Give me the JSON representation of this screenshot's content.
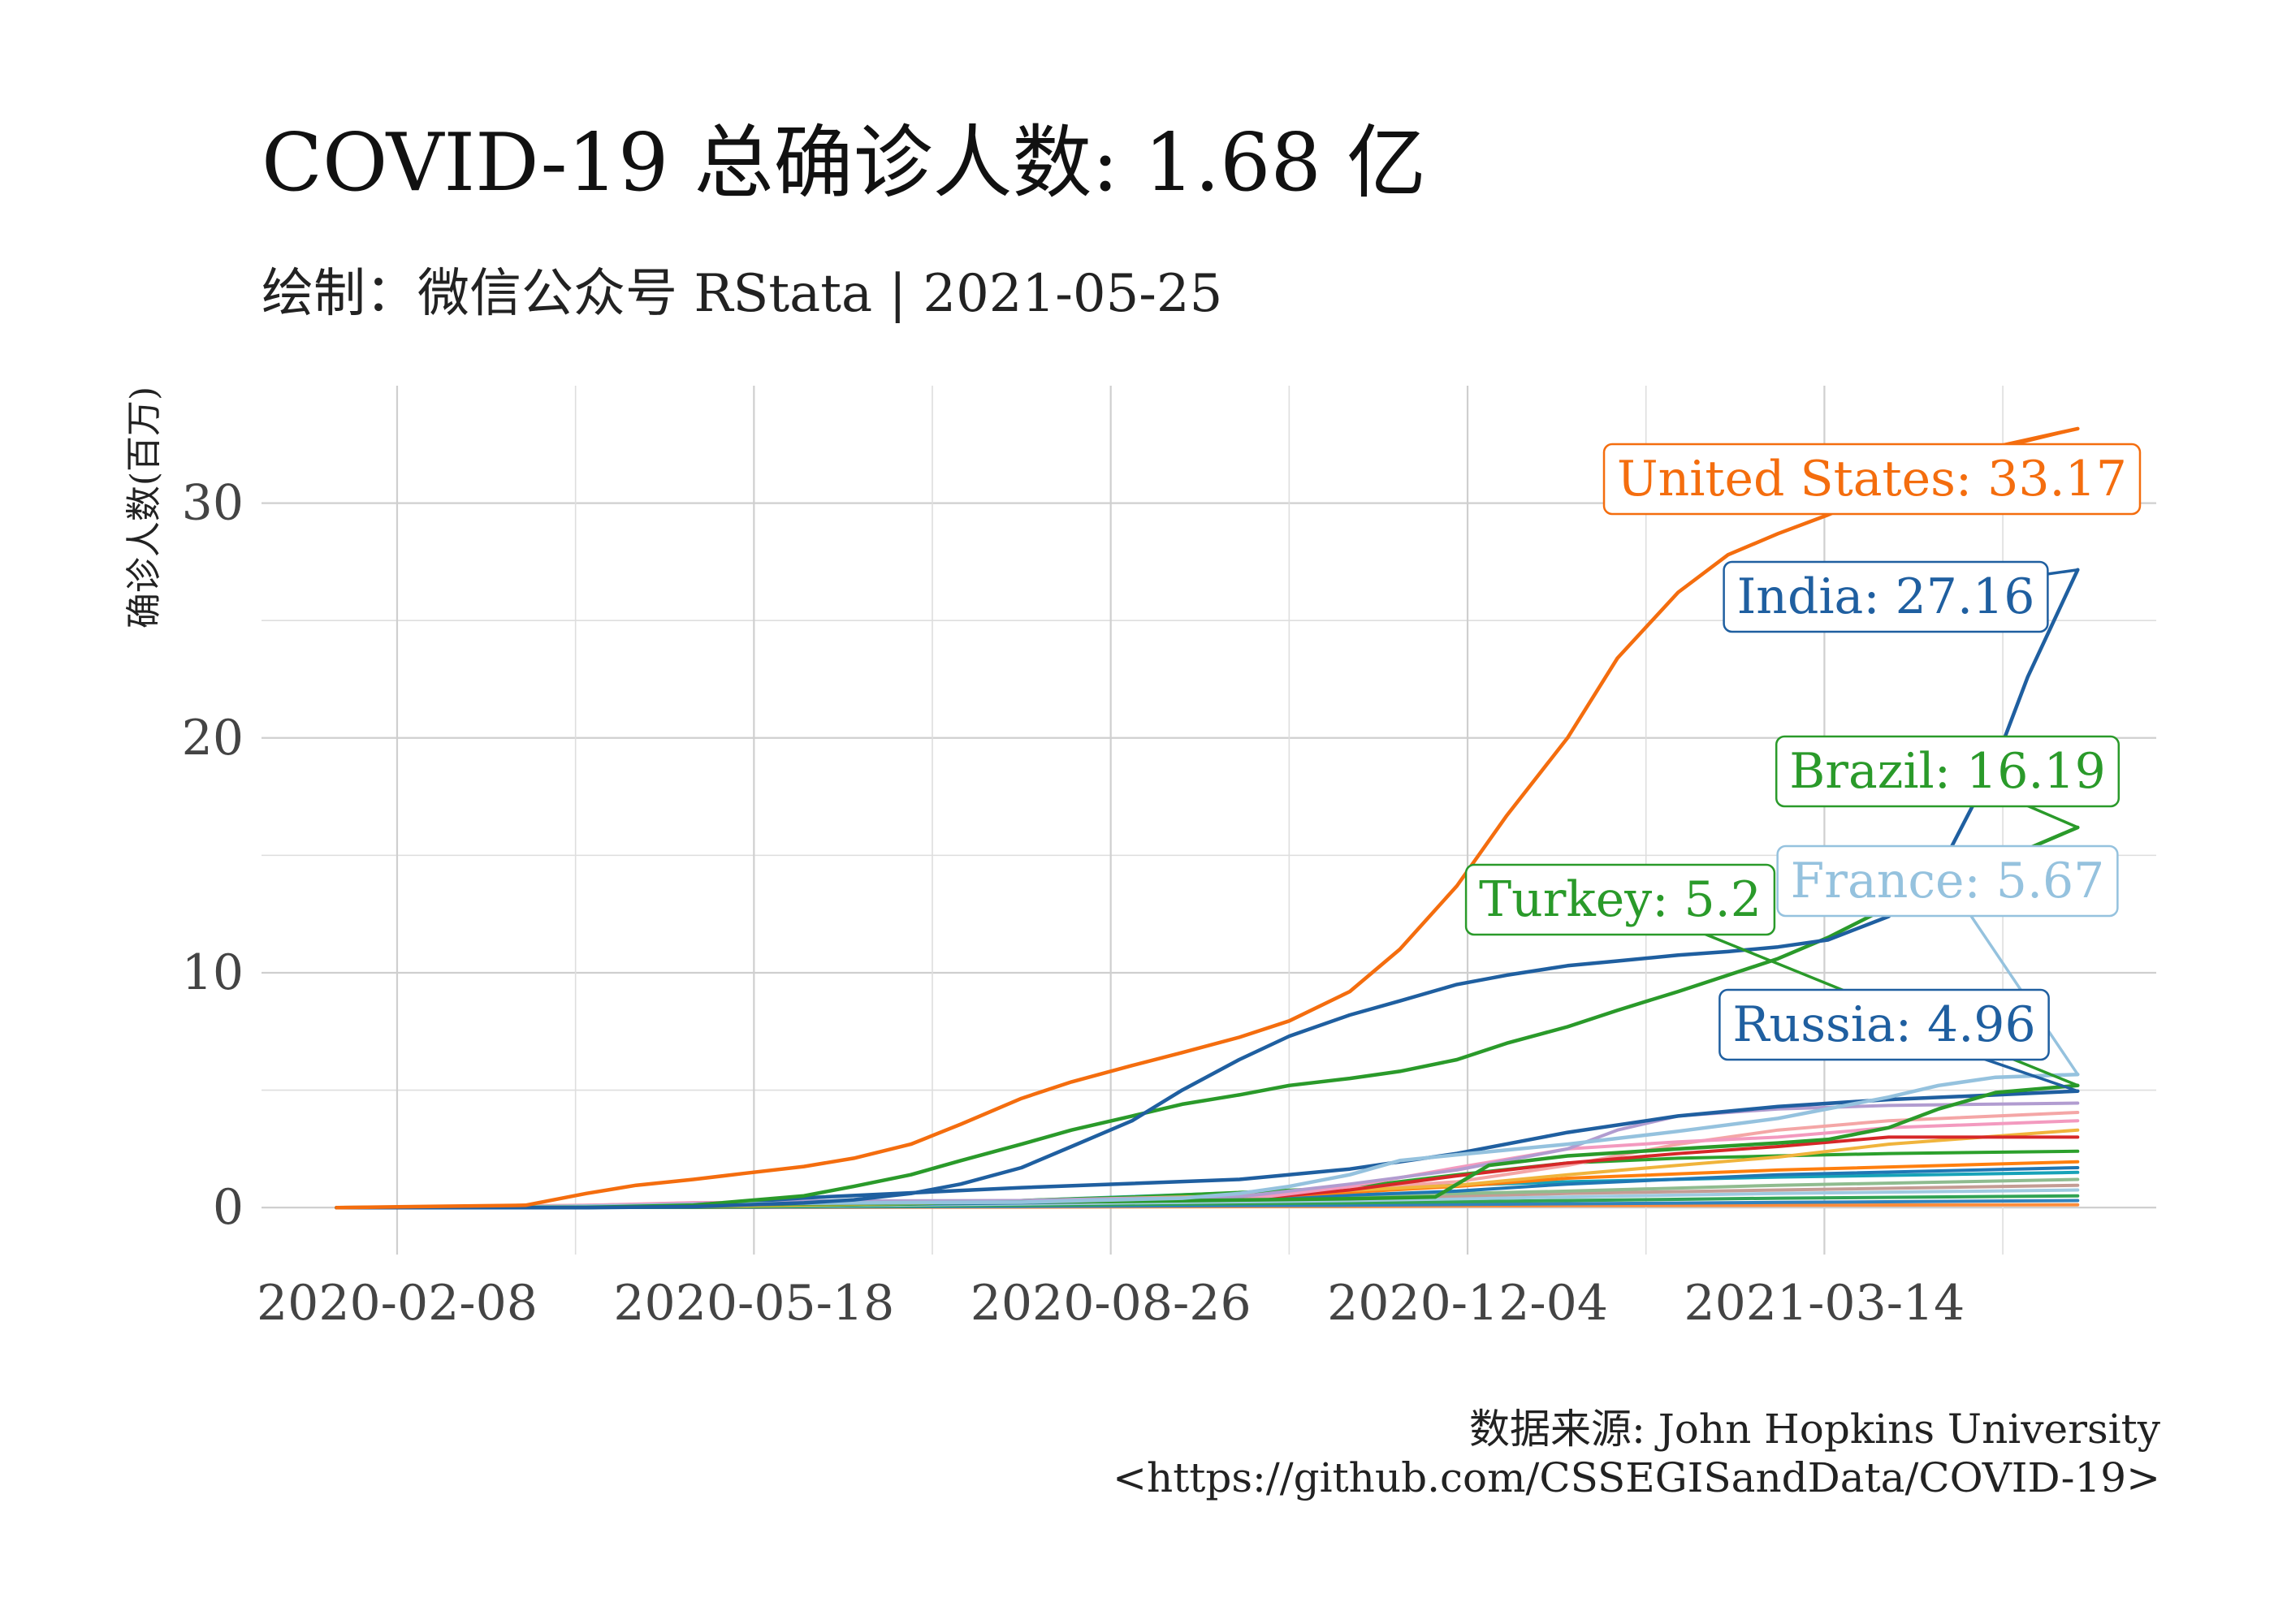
{
  "chart_data": {
    "type": "line",
    "title": "COVID-19 总确诊人数: 1.68 亿",
    "subtitle": "绘制：微信公众号 RStata | 2021-05-25",
    "ylabel": "确诊人数(百万)",
    "xlabel": "",
    "ylim": [
      -2,
      35
    ],
    "xlim": [
      "2020-01-01",
      "2021-06-15"
    ],
    "yticks": [
      "0",
      "10",
      "20",
      "30"
    ],
    "xticks": [
      "2020-02-08",
      "2020-05-18",
      "2020-08-26",
      "2020-12-04",
      "2021-03-14"
    ],
    "grid": true,
    "legend": "none",
    "caption": [
      "数据来源: John Hopkins University",
      "<https://github.com/CSSEGISandData/COVID-19>"
    ],
    "labels": [
      {
        "text": "United States: 33.17",
        "series": "United States"
      },
      {
        "text": "India: 27.16",
        "series": "India"
      },
      {
        "text": "Brazil: 16.19",
        "series": "Brazil"
      },
      {
        "text": "France: 5.67",
        "series": "France"
      },
      {
        "text": "Turkey: 5.2",
        "series": "Turkey"
      },
      {
        "text": "Russia: 4.96",
        "series": "Russia"
      }
    ],
    "series": [
      {
        "name": "United States",
        "color": "#f46d0e",
        "x": [
          "2020-01-22",
          "2020-03-15",
          "2020-04-01",
          "2020-04-15",
          "2020-05-01",
          "2020-05-15",
          "2020-06-01",
          "2020-06-15",
          "2020-07-01",
          "2020-07-15",
          "2020-08-01",
          "2020-08-15",
          "2020-09-01",
          "2020-09-15",
          "2020-10-01",
          "2020-10-15",
          "2020-11-01",
          "2020-11-15",
          "2020-12-01",
          "2020-12-15",
          "2021-01-01",
          "2021-01-15",
          "2021-02-01",
          "2021-02-15",
          "2021-03-01",
          "2021-03-15",
          "2021-04-01",
          "2021-04-15",
          "2021-05-01",
          "2021-05-24"
        ],
        "y": [
          0,
          0.1,
          0.6,
          0.95,
          1.2,
          1.45,
          1.75,
          2.1,
          2.7,
          3.55,
          4.65,
          5.35,
          6.05,
          6.6,
          7.25,
          7.95,
          9.2,
          11.0,
          13.7,
          16.7,
          20.0,
          23.4,
          26.2,
          27.8,
          28.7,
          29.5,
          30.6,
          31.6,
          32.4,
          33.17
        ]
      },
      {
        "name": "India",
        "color": "#1f5fa0",
        "x": [
          "2020-01-22",
          "2020-04-01",
          "2020-05-01",
          "2020-06-01",
          "2020-06-15",
          "2020-07-01",
          "2020-07-15",
          "2020-08-01",
          "2020-08-15",
          "2020-09-01",
          "2020-09-15",
          "2020-10-01",
          "2020-10-15",
          "2020-11-01",
          "2020-11-15",
          "2020-12-01",
          "2020-12-15",
          "2021-01-01",
          "2021-01-15",
          "2021-02-01",
          "2021-02-15",
          "2021-03-01",
          "2021-03-15",
          "2021-04-01",
          "2021-04-15",
          "2021-05-01",
          "2021-05-10",
          "2021-05-24"
        ],
        "y": [
          0,
          0,
          0.04,
          0.2,
          0.33,
          0.6,
          1.0,
          1.7,
          2.6,
          3.7,
          5.0,
          6.3,
          7.3,
          8.2,
          8.8,
          9.5,
          9.9,
          10.3,
          10.5,
          10.75,
          10.9,
          11.1,
          11.4,
          12.4,
          14.3,
          19.0,
          22.6,
          27.16
        ]
      },
      {
        "name": "Brazil",
        "color": "#2a9a2a",
        "x": [
          "2020-01-22",
          "2020-04-01",
          "2020-05-01",
          "2020-06-01",
          "2020-06-15",
          "2020-07-01",
          "2020-07-15",
          "2020-08-01",
          "2020-08-15",
          "2020-09-01",
          "2020-09-15",
          "2020-10-01",
          "2020-10-15",
          "2020-11-01",
          "2020-11-15",
          "2020-12-01",
          "2020-12-15",
          "2021-01-01",
          "2021-01-15",
          "2021-02-01",
          "2021-02-15",
          "2021-03-01",
          "2021-03-15",
          "2021-04-01",
          "2021-04-15",
          "2021-05-01",
          "2021-05-24"
        ],
        "y": [
          0,
          0.01,
          0.1,
          0.5,
          0.9,
          1.4,
          2.0,
          2.7,
          3.3,
          3.9,
          4.4,
          4.8,
          5.2,
          5.5,
          5.8,
          6.3,
          7.0,
          7.7,
          8.4,
          9.2,
          9.9,
          10.6,
          11.5,
          12.8,
          13.8,
          14.7,
          16.19
        ]
      },
      {
        "name": "France",
        "color": "#95c2de",
        "x": [
          "2020-01-22",
          "2020-03-01",
          "2020-04-01",
          "2020-06-01",
          "2020-08-01",
          "2020-09-15",
          "2020-10-01",
          "2020-10-15",
          "2020-11-01",
          "2020-11-15",
          "2020-12-01",
          "2020-12-15",
          "2021-01-01",
          "2021-02-01",
          "2021-03-01",
          "2021-04-01",
          "2021-04-15",
          "2021-05-01",
          "2021-05-24"
        ],
        "y": [
          0,
          0,
          0.06,
          0.19,
          0.23,
          0.4,
          0.6,
          0.9,
          1.4,
          2.0,
          2.25,
          2.45,
          2.7,
          3.25,
          3.8,
          4.7,
          5.2,
          5.55,
          5.67
        ]
      },
      {
        "name": "Turkey",
        "color": "#2a9a2a",
        "x": [
          "2020-01-22",
          "2020-04-01",
          "2020-06-01",
          "2020-09-01",
          "2020-11-01",
          "2020-11-25",
          "2020-12-10",
          "2021-01-01",
          "2021-02-01",
          "2021-03-01",
          "2021-03-15",
          "2021-04-01",
          "2021-04-15",
          "2021-05-01",
          "2021-05-24"
        ],
        "y": [
          0,
          0.02,
          0.16,
          0.27,
          0.38,
          0.45,
          1.8,
          2.2,
          2.5,
          2.75,
          2.9,
          3.4,
          4.2,
          4.9,
          5.2
        ]
      },
      {
        "name": "Russia",
        "color": "#1f5fa0",
        "x": [
          "2020-01-22",
          "2020-04-01",
          "2020-05-01",
          "2020-06-01",
          "2020-08-01",
          "2020-10-01",
          "2020-11-01",
          "2020-12-01",
          "2021-01-01",
          "2021-02-01",
          "2021-03-01",
          "2021-04-01",
          "2021-05-01",
          "2021-05-24"
        ],
        "y": [
          0,
          0.003,
          0.11,
          0.41,
          0.85,
          1.2,
          1.64,
          2.3,
          3.2,
          3.9,
          4.3,
          4.6,
          4.8,
          4.96
        ]
      },
      {
        "name": "",
        "color": "#b19cd0",
        "x": [
          "2020-01-22",
          "2020-03-15",
          "2020-04-15",
          "2020-06-01",
          "2020-08-01",
          "2020-10-01",
          "2020-11-01",
          "2020-12-01",
          "2021-01-01",
          "2021-01-15",
          "2021-02-01",
          "2021-03-01",
          "2021-04-01",
          "2021-05-24"
        ],
        "y": [
          0,
          0.001,
          0.1,
          0.28,
          0.3,
          0.46,
          1.0,
          1.6,
          2.5,
          3.3,
          3.9,
          4.2,
          4.35,
          4.45
        ]
      },
      {
        "name": "",
        "color": "#f39abf",
        "x": [
          "2020-01-22",
          "2020-03-15",
          "2020-05-01",
          "2020-08-01",
          "2020-10-01",
          "2020-11-01",
          "2020-12-01",
          "2021-01-01",
          "2021-02-01",
          "2021-03-01",
          "2021-04-01",
          "2021-05-24"
        ],
        "y": [
          0,
          0.03,
          0.21,
          0.25,
          0.32,
          0.9,
          1.7,
          2.5,
          2.8,
          3.0,
          3.4,
          3.7
        ]
      },
      {
        "name": "",
        "color": "#d62728",
        "x": [
          "2020-01-22",
          "2020-03-15",
          "2020-05-01",
          "2020-08-01",
          "2020-10-01",
          "2020-11-01",
          "2020-12-01",
          "2021-01-01",
          "2021-02-01",
          "2021-03-01",
          "2021-04-01",
          "2021-05-24"
        ],
        "y": [
          0,
          0.02,
          0.2,
          0.25,
          0.32,
          0.75,
          1.35,
          1.9,
          2.3,
          2.6,
          3.0,
          3.0
        ]
      },
      {
        "name": "",
        "color": "#f0b43c",
        "x": [
          "2020-01-22",
          "2020-05-01",
          "2020-08-01",
          "2020-10-01",
          "2020-12-01",
          "2021-01-01",
          "2021-02-01",
          "2021-03-01",
          "2021-04-01",
          "2021-05-24"
        ],
        "y": [
          0,
          0.04,
          0.25,
          0.5,
          0.95,
          1.4,
          1.8,
          2.15,
          2.7,
          3.3
        ]
      },
      {
        "name": "",
        "color": "#f4a6a6",
        "x": [
          "2020-01-22",
          "2020-04-01",
          "2020-06-01",
          "2020-08-01",
          "2020-10-01",
          "2020-12-01",
          "2021-01-01",
          "2021-02-01",
          "2021-03-01",
          "2021-04-01",
          "2021-05-24"
        ],
        "y": [
          0,
          0.1,
          0.23,
          0.3,
          0.5,
          1.1,
          1.8,
          2.7,
          3.3,
          3.7,
          4.05
        ]
      },
      {
        "name": "",
        "color": "#2ca02c",
        "x": [
          "2020-01-22",
          "2020-05-01",
          "2020-07-01",
          "2020-09-01",
          "2020-11-01",
          "2020-12-01",
          "2021-01-01",
          "2021-02-01",
          "2021-03-01",
          "2021-04-01",
          "2021-05-24"
        ],
        "y": [
          0,
          0.02,
          0.15,
          0.45,
          0.85,
          1.4,
          1.9,
          2.1,
          2.2,
          2.3,
          2.4
        ]
      },
      {
        "name": "",
        "color": "#ff7f0e",
        "x": [
          "2020-01-22",
          "2020-04-01",
          "2020-06-01",
          "2020-08-01",
          "2020-10-01",
          "2020-12-01",
          "2021-01-01",
          "2021-03-01",
          "2021-05-24"
        ],
        "y": [
          0,
          0.04,
          0.15,
          0.25,
          0.4,
          0.9,
          1.25,
          1.6,
          1.95
        ]
      },
      {
        "name": "",
        "color": "#1f77b4",
        "x": [
          "2020-01-22",
          "2020-04-01",
          "2020-06-01",
          "2020-08-01",
          "2020-10-01",
          "2020-12-01",
          "2021-01-01",
          "2021-03-01",
          "2021-05-24"
        ],
        "y": [
          0,
          0.02,
          0.1,
          0.2,
          0.35,
          0.7,
          1.0,
          1.4,
          1.7
        ]
      },
      {
        "name": "",
        "color": "#17a2b8",
        "x": [
          "2020-01-22",
          "2020-05-01",
          "2020-08-01",
          "2020-11-01",
          "2021-01-01",
          "2021-03-01",
          "2021-05-24"
        ],
        "y": [
          0,
          0.05,
          0.3,
          0.8,
          1.1,
          1.3,
          1.5
        ]
      },
      {
        "name": "",
        "color": "#8fbc8f",
        "x": [
          "2020-01-22",
          "2020-05-01",
          "2020-08-01",
          "2020-11-01",
          "2021-01-01",
          "2021-03-01",
          "2021-05-24"
        ],
        "y": [
          0,
          0.08,
          0.25,
          0.5,
          0.7,
          0.95,
          1.2
        ]
      },
      {
        "name": "",
        "color": "#c49c94",
        "x": [
          "2020-01-22",
          "2020-05-01",
          "2020-08-01",
          "2020-11-01",
          "2021-01-01",
          "2021-03-01",
          "2021-05-24"
        ],
        "y": [
          0,
          0.05,
          0.2,
          0.4,
          0.6,
          0.75,
          0.95
        ]
      },
      {
        "name": "",
        "color": "#9ecae1",
        "x": [
          "2020-01-22",
          "2020-05-01",
          "2020-08-01",
          "2020-11-01",
          "2021-01-01",
          "2021-03-01",
          "2021-05-24"
        ],
        "y": [
          0,
          0.03,
          0.15,
          0.3,
          0.45,
          0.6,
          0.75
        ]
      },
      {
        "name": "",
        "color": "#31a354",
        "x": [
          "2020-01-22",
          "2020-05-01",
          "2020-08-01",
          "2020-11-01",
          "2021-01-01",
          "2021-03-01",
          "2021-05-24"
        ],
        "y": [
          0,
          0.02,
          0.1,
          0.2,
          0.3,
          0.4,
          0.5
        ]
      },
      {
        "name": "",
        "color": "#3182bd",
        "x": [
          "2020-01-22",
          "2020-05-01",
          "2020-08-01",
          "2020-11-01",
          "2021-01-01",
          "2021-03-01",
          "2021-05-24"
        ],
        "y": [
          0,
          0.01,
          0.05,
          0.1,
          0.16,
          0.22,
          0.3
        ]
      },
      {
        "name": "",
        "color": "#fd8d3c",
        "x": [
          "2020-01-22",
          "2020-05-01",
          "2020-08-01",
          "2020-11-01",
          "2021-01-01",
          "2021-03-01",
          "2021-05-24"
        ],
        "y": [
          0,
          0.005,
          0.02,
          0.05,
          0.08,
          0.1,
          0.12
        ]
      }
    ]
  }
}
